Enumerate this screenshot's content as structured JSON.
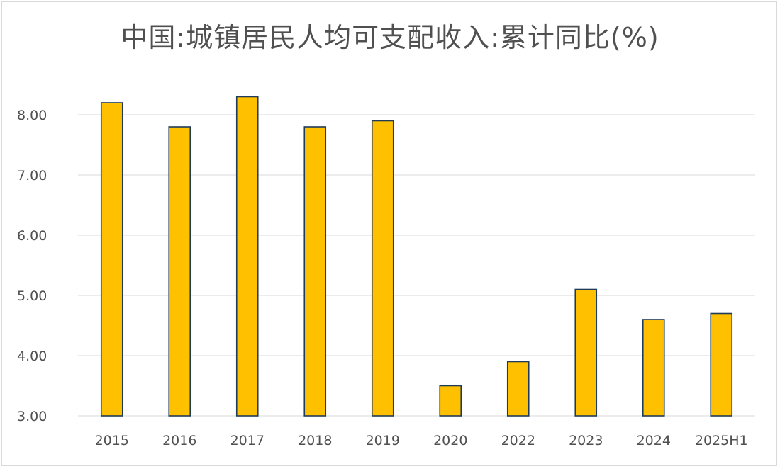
{
  "chart_data": {
    "type": "bar",
    "title": "中国:城镇居民人均可支配收入:累计同比(%)",
    "categories": [
      "2015",
      "2016",
      "2017",
      "2018",
      "2019",
      "2020",
      "2022",
      "2023",
      "2024",
      "2025H1"
    ],
    "values": [
      8.2,
      7.8,
      8.3,
      7.8,
      7.9,
      3.5,
      3.9,
      5.1,
      4.6,
      4.7
    ],
    "ylim": [
      3.0,
      8.0
    ],
    "yticks": [
      "3.00",
      "4.00",
      "5.00",
      "6.00",
      "7.00",
      "8.00"
    ],
    "xlabel": "",
    "ylabel": "",
    "grid": true,
    "legend": "none",
    "colors": {
      "bar_fill": "#FFC000",
      "bar_stroke": "#1F3B5A",
      "grid": "#d9d9d9",
      "text": "#505050"
    }
  }
}
